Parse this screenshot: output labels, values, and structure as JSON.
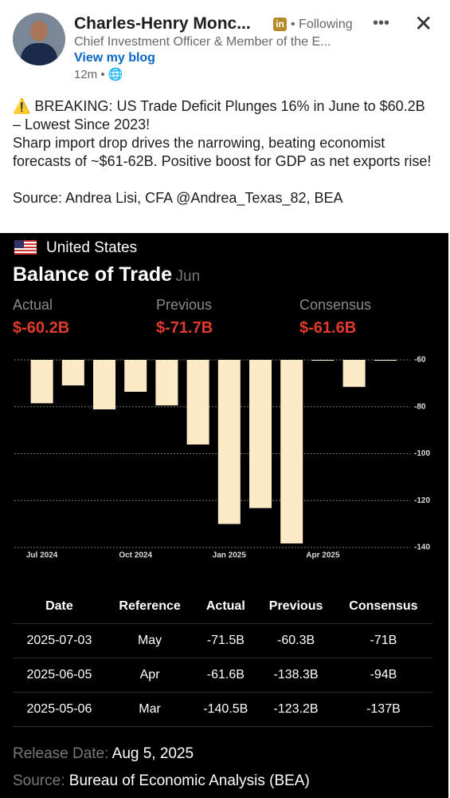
{
  "post": {
    "author": "Charles-Henry Monc...",
    "headline": "Chief Investment Officer & Member of the E...",
    "link": "View my blog",
    "time": "12m •",
    "follow": "Following",
    "paragraphs": [
      "⚠️ BREAKING: US Trade Deficit Plunges 16% in June to $60.2B – Lowest Since 2023!",
      "Sharp import drop drives the narrowing, beating economist forecasts of ~$61-62B. Positive boost for GDP as net exports rise!",
      "Source: Andrea Lisi, CFA @Andrea_Texas_82, BEA"
    ]
  },
  "card": {
    "country": "United States",
    "indicator": "Balance of Trade",
    "period": "Jun",
    "stats": [
      {
        "label": "Actual",
        "value": "$-60.2B"
      },
      {
        "label": "Previous",
        "value": "$-71.7B"
      },
      {
        "label": "Consensus",
        "value": "$-61.6B"
      }
    ],
    "release_label": "Release Date:",
    "release_date": "Aug 5, 2025",
    "source_label": "Source:",
    "source": "Bureau of Economic Analysis (BEA)"
  },
  "chart_data": {
    "type": "bar",
    "categories": [
      "Jul 2024",
      null,
      null,
      "Oct 2024",
      null,
      null,
      "Jan 2025",
      null,
      null,
      "Apr 2025",
      null,
      null
    ],
    "values": [
      -78.5,
      -70.9,
      -81.1,
      -73.6,
      -79.4,
      -96.1,
      -130,
      -123.2,
      -138.3,
      -60.3,
      -71.5,
      -60.2
    ],
    "color": "#fdebc8",
    "ylim": [
      -140,
      -60
    ],
    "yticks": [
      -60,
      -80,
      -100,
      -120,
      -140
    ],
    "grid": true
  },
  "table": {
    "columns": [
      "Date",
      "Reference",
      "Actual",
      "Previous",
      "Consensus"
    ],
    "rows": [
      [
        "2025-07-03",
        "May",
        "-71.5B",
        "-60.3B",
        "-71B"
      ],
      [
        "2025-06-05",
        "Apr",
        "-61.6B",
        "-138.3B",
        "-94B"
      ],
      [
        "2025-05-06",
        "Mar",
        "-140.5B",
        "-123.2B",
        "-137B"
      ]
    ]
  }
}
